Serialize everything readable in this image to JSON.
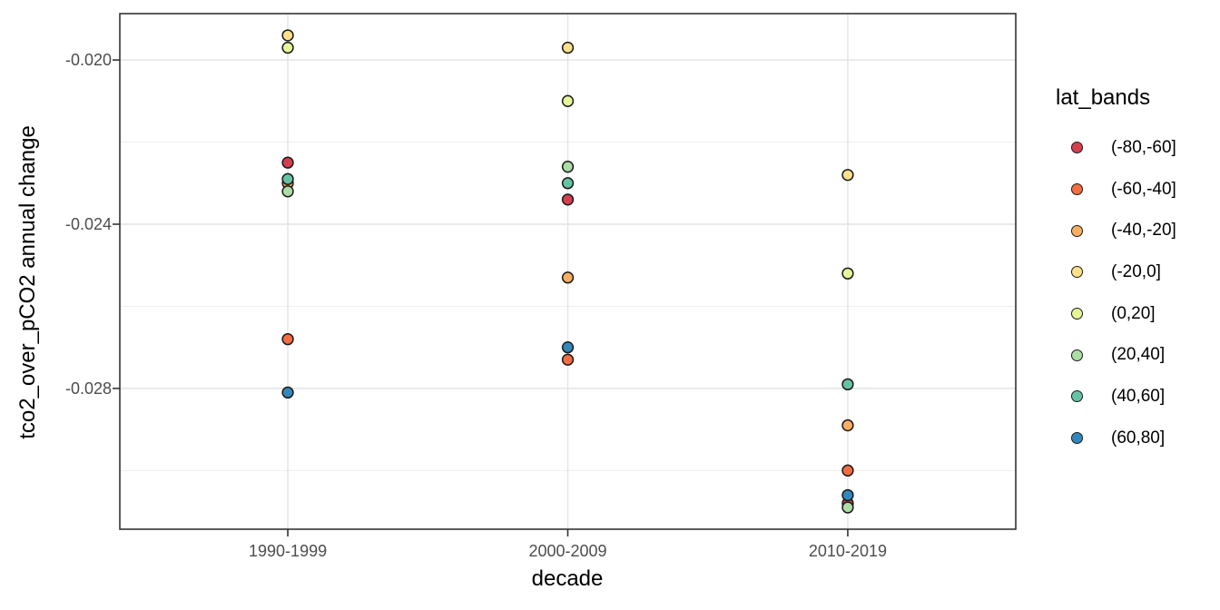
{
  "chart_data": {
    "type": "scatter",
    "xlabel": "decade",
    "ylabel": "tco2_over_pCO2 annual change",
    "categories": [
      "1990-1999",
      "2000-2009",
      "2010-2019"
    ],
    "y_ticks": [
      {
        "value": -0.02,
        "label": "-0.020"
      },
      {
        "value": -0.024,
        "label": "-0.024"
      },
      {
        "value": -0.028,
        "label": "-0.028"
      }
    ],
    "y_minor_ticks": [
      -0.022,
      -0.026,
      -0.03
    ],
    "ylim": [
      -0.03143,
      -0.01887
    ],
    "grid": true,
    "legend_position": "right",
    "legend": {
      "title": "lat_bands",
      "items": [
        {
          "label": "(-80,-60]",
          "color": "#D53E4F"
        },
        {
          "label": "(-60,-40]",
          "color": "#F46D43"
        },
        {
          "label": "(-40,-20]",
          "color": "#FDAE61"
        },
        {
          "label": "(-20,0]",
          "color": "#FEE08B"
        },
        {
          "label": "(0,20]",
          "color": "#E6F598"
        },
        {
          "label": "(20,40]",
          "color": "#ABDDA4"
        },
        {
          "label": "(40,60]",
          "color": "#66C2A5"
        },
        {
          "label": "(60,80]",
          "color": "#3288BD"
        }
      ]
    },
    "series": [
      {
        "name": "(-80,-60]",
        "color": "#D53E4F",
        "values": [
          -0.0225,
          -0.0234,
          -0.0308
        ]
      },
      {
        "name": "(-60,-40]",
        "color": "#F46D43",
        "values": [
          -0.0268,
          -0.0273,
          -0.03
        ]
      },
      {
        "name": "(-40,-20]",
        "color": "#FDAE61",
        "values": [
          -0.023,
          -0.0253,
          -0.0289
        ]
      },
      {
        "name": "(-20,0]",
        "color": "#FEE08B",
        "values": [
          -0.0194,
          -0.0197,
          -0.0228
        ]
      },
      {
        "name": "(0,20]",
        "color": "#E6F598",
        "values": [
          -0.0197,
          -0.021,
          -0.0252
        ]
      },
      {
        "name": "(20,40]",
        "color": "#ABDDA4",
        "values": [
          -0.0232,
          -0.0226,
          -0.0309
        ]
      },
      {
        "name": "(40,60]",
        "color": "#66C2A5",
        "values": [
          -0.0229,
          -0.023,
          -0.0279
        ]
      },
      {
        "name": "(60,80]",
        "color": "#3288BD",
        "values": [
          -0.0281,
          -0.027,
          -0.0306
        ]
      }
    ],
    "style": {
      "panel_border_color": "#333333",
      "grid_major_color": "#e3e3e3",
      "grid_minor_color": "#ebebeb",
      "tick_mark_color": "#333333",
      "tick_label_color": "#4d4d4d",
      "point_stroke_color": "#1a1a1a",
      "background_color": "#ffffff"
    }
  }
}
